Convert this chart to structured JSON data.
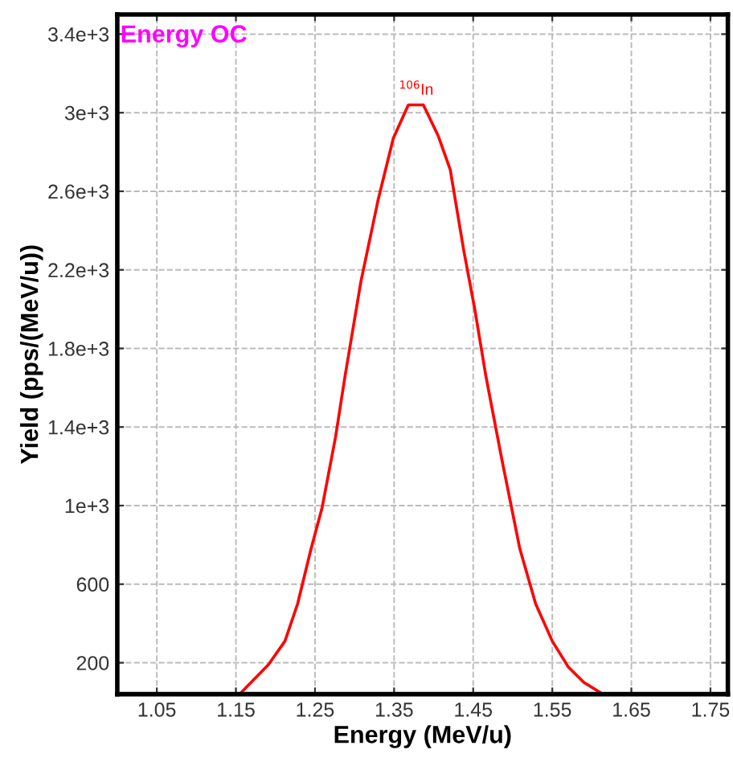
{
  "chart_data": {
    "type": "line",
    "title": "Energy OC",
    "xlabel": "Energy (MeV/u)",
    "ylabel": "Yield (pps/(MeV/u))",
    "x": [
      1.157,
      1.191,
      1.212,
      1.228,
      1.245,
      1.259,
      1.276,
      1.288,
      1.308,
      1.33,
      1.349,
      1.368,
      1.387,
      1.406,
      1.421,
      1.438,
      1.452,
      1.466,
      1.486,
      1.509,
      1.529,
      1.55,
      1.57,
      1.59,
      1.61
    ],
    "series": [
      {
        "color": "#ff0000",
        "values": [
          50,
          190,
          310,
          500,
          780,
          990,
          1350,
          1660,
          2140,
          2560,
          2870,
          3040,
          3040,
          2880,
          2710,
          2300,
          2000,
          1660,
          1240,
          780,
          500,
          310,
          180,
          100,
          50
        ]
      }
    ],
    "annotations": [
      {
        "text": "$^{106}$In",
        "x": 1.378,
        "y": 3035
      }
    ],
    "xlim": [
      1.0,
      1.772
    ],
    "ylim": [
      40,
      3500
    ],
    "xticks": [
      1.05,
      1.15,
      1.25,
      1.35,
      1.45,
      1.55,
      1.65,
      1.75
    ],
    "yticks": [
      {
        "value": 200,
        "label": "200"
      },
      {
        "value": 600,
        "label": "600"
      },
      {
        "value": 1000,
        "label": "1e+3"
      },
      {
        "value": 1400,
        "label": "1.4e+3"
      },
      {
        "value": 1800,
        "label": "1.8e+3"
      },
      {
        "value": 2200,
        "label": "2.2e+3"
      },
      {
        "value": 2600,
        "label": "2.6e+3"
      },
      {
        "value": 3000,
        "label": "3e+3"
      },
      {
        "value": 3400,
        "label": "3.4e+3"
      }
    ],
    "grid": true,
    "line_style": "solid",
    "marker": "none"
  }
}
